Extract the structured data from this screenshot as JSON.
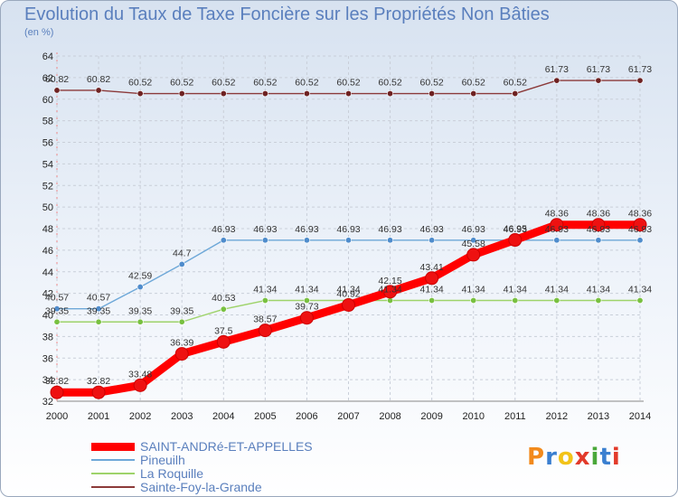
{
  "title": "Evolution du Taux de Taxe Foncière sur les Propriétés Non Bâties",
  "subtitle": "(en %)",
  "logo": {
    "letters": [
      "P",
      "r",
      "o",
      "x",
      "i",
      "t",
      "i"
    ],
    "colors": [
      "#f28a1c",
      "#3a7fd0",
      "#f2c318",
      "#e23a2a",
      "#4aa83a",
      "#3a7fd0",
      "#e23a2a"
    ]
  },
  "chart_data": {
    "type": "line",
    "x": [
      2000,
      2001,
      2002,
      2003,
      2004,
      2005,
      2006,
      2007,
      2008,
      2009,
      2010,
      2011,
      2012,
      2013,
      2014
    ],
    "ylim": [
      32,
      64
    ],
    "yticks": [
      32,
      34,
      36,
      38,
      40,
      42,
      44,
      46,
      48,
      50,
      52,
      54,
      56,
      58,
      60,
      62,
      64
    ],
    "grid": true,
    "legend_position": "bottom-left",
    "series": [
      {
        "name": "SAINT-ANDRé-ET-APPELLES",
        "color": "#ff0000",
        "dot": "#ee1111",
        "values": [
          32.82,
          32.82,
          33.48,
          36.39,
          37.5,
          38.57,
          39.73,
          40.92,
          42.15,
          43.41,
          45.58,
          46.95,
          48.36,
          48.36,
          48.36
        ]
      },
      {
        "name": "Pineuilh",
        "color": "#6ea8d8",
        "dot": "#4f8ccc",
        "values": [
          40.57,
          40.57,
          42.59,
          44.7,
          46.93,
          46.93,
          46.93,
          46.93,
          46.93,
          46.93,
          46.93,
          46.93,
          46.93,
          46.93,
          46.93
        ]
      },
      {
        "name": "La Roquille",
        "color": "#9ed36a",
        "dot": "#78c040",
        "values": [
          39.35,
          39.35,
          39.35,
          39.35,
          40.53,
          41.34,
          41.34,
          41.34,
          41.34,
          41.34,
          41.34,
          41.34,
          41.34,
          41.34,
          41.34
        ]
      },
      {
        "name": "Sainte-Foy-la-Grande",
        "color": "#8b3a3a",
        "dot": "#6e2222",
        "values": [
          60.82,
          60.82,
          60.52,
          60.52,
          60.52,
          60.52,
          60.52,
          60.52,
          60.52,
          60.52,
          60.52,
          60.52,
          61.73,
          61.73,
          61.73
        ]
      }
    ],
    "labels": {
      "SAINT-ANDRé-ET-APPELLES": [
        "32.82",
        "32.82",
        "33.48",
        "36.39",
        "37.5",
        "38.57",
        "39.73",
        "40.92",
        "42.15",
        "43.41",
        "45.58",
        "46.95",
        "48.36",
        "48.36",
        "48.36"
      ],
      "Pineuilh": [
        "40.57",
        "40.57",
        "42.59",
        "44.7",
        "46.93",
        "46.93",
        "46.93",
        "46.93",
        "46.93",
        "46.93",
        "46.93",
        "46.93",
        "46.93",
        "46.93",
        "46.93"
      ],
      "La Roquille": [
        "39.35",
        "39.35",
        "39.35",
        "39.35",
        "40.53",
        "41.34",
        "41.34",
        "41.34",
        "41.34",
        "41.34",
        "41.34",
        "41.34",
        "41.34",
        "41.34",
        "41.34"
      ],
      "Sainte-Foy-la-Grande": [
        "60.82",
        "60.82",
        "60.52",
        "60.52",
        "60.52",
        "60.52",
        "60.52",
        "60.52",
        "60.52",
        "60.52",
        "60.52",
        "60.52",
        "61.73",
        "61.73",
        "61.73"
      ]
    }
  }
}
